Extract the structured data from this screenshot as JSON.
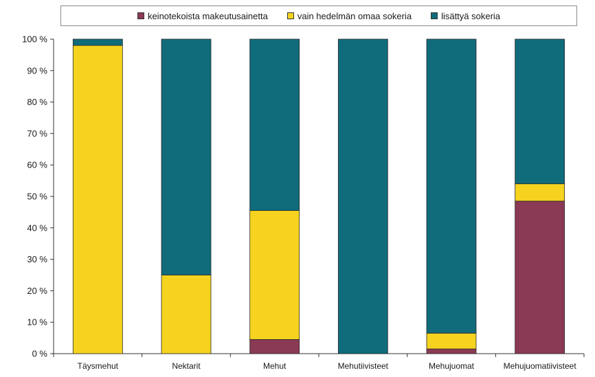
{
  "chart_data": {
    "type": "bar",
    "stacked": true,
    "percent": true,
    "categories": [
      "Täysmehut",
      "Nektarit",
      "Mehut",
      "Mehutiivisteet",
      "Mehujuomat",
      "Mehujuomatiivisteet"
    ],
    "series": [
      {
        "name": "keinotekoista makeutusainetta",
        "color": "#8b3a55",
        "values": [
          0,
          0,
          4.5,
          0,
          1.5,
          48.5
        ]
      },
      {
        "name": "vain hedelmän omaa sokeria",
        "color": "#f5d31f",
        "values": [
          98,
          25,
          41,
          0,
          5,
          5.5
        ]
      },
      {
        "name": "lisättyä sokeria",
        "color": "#106b7a",
        "values": [
          2,
          75,
          54.5,
          100,
          93.5,
          46
        ]
      }
    ],
    "yticks": [
      "0 %",
      "10 %",
      "20 %",
      "30 %",
      "40 %",
      "50 %",
      "60 %",
      "70 %",
      "80 %",
      "90 %",
      "100 %"
    ],
    "ylim": [
      0,
      100
    ],
    "grid": false,
    "legend_position": "top"
  }
}
